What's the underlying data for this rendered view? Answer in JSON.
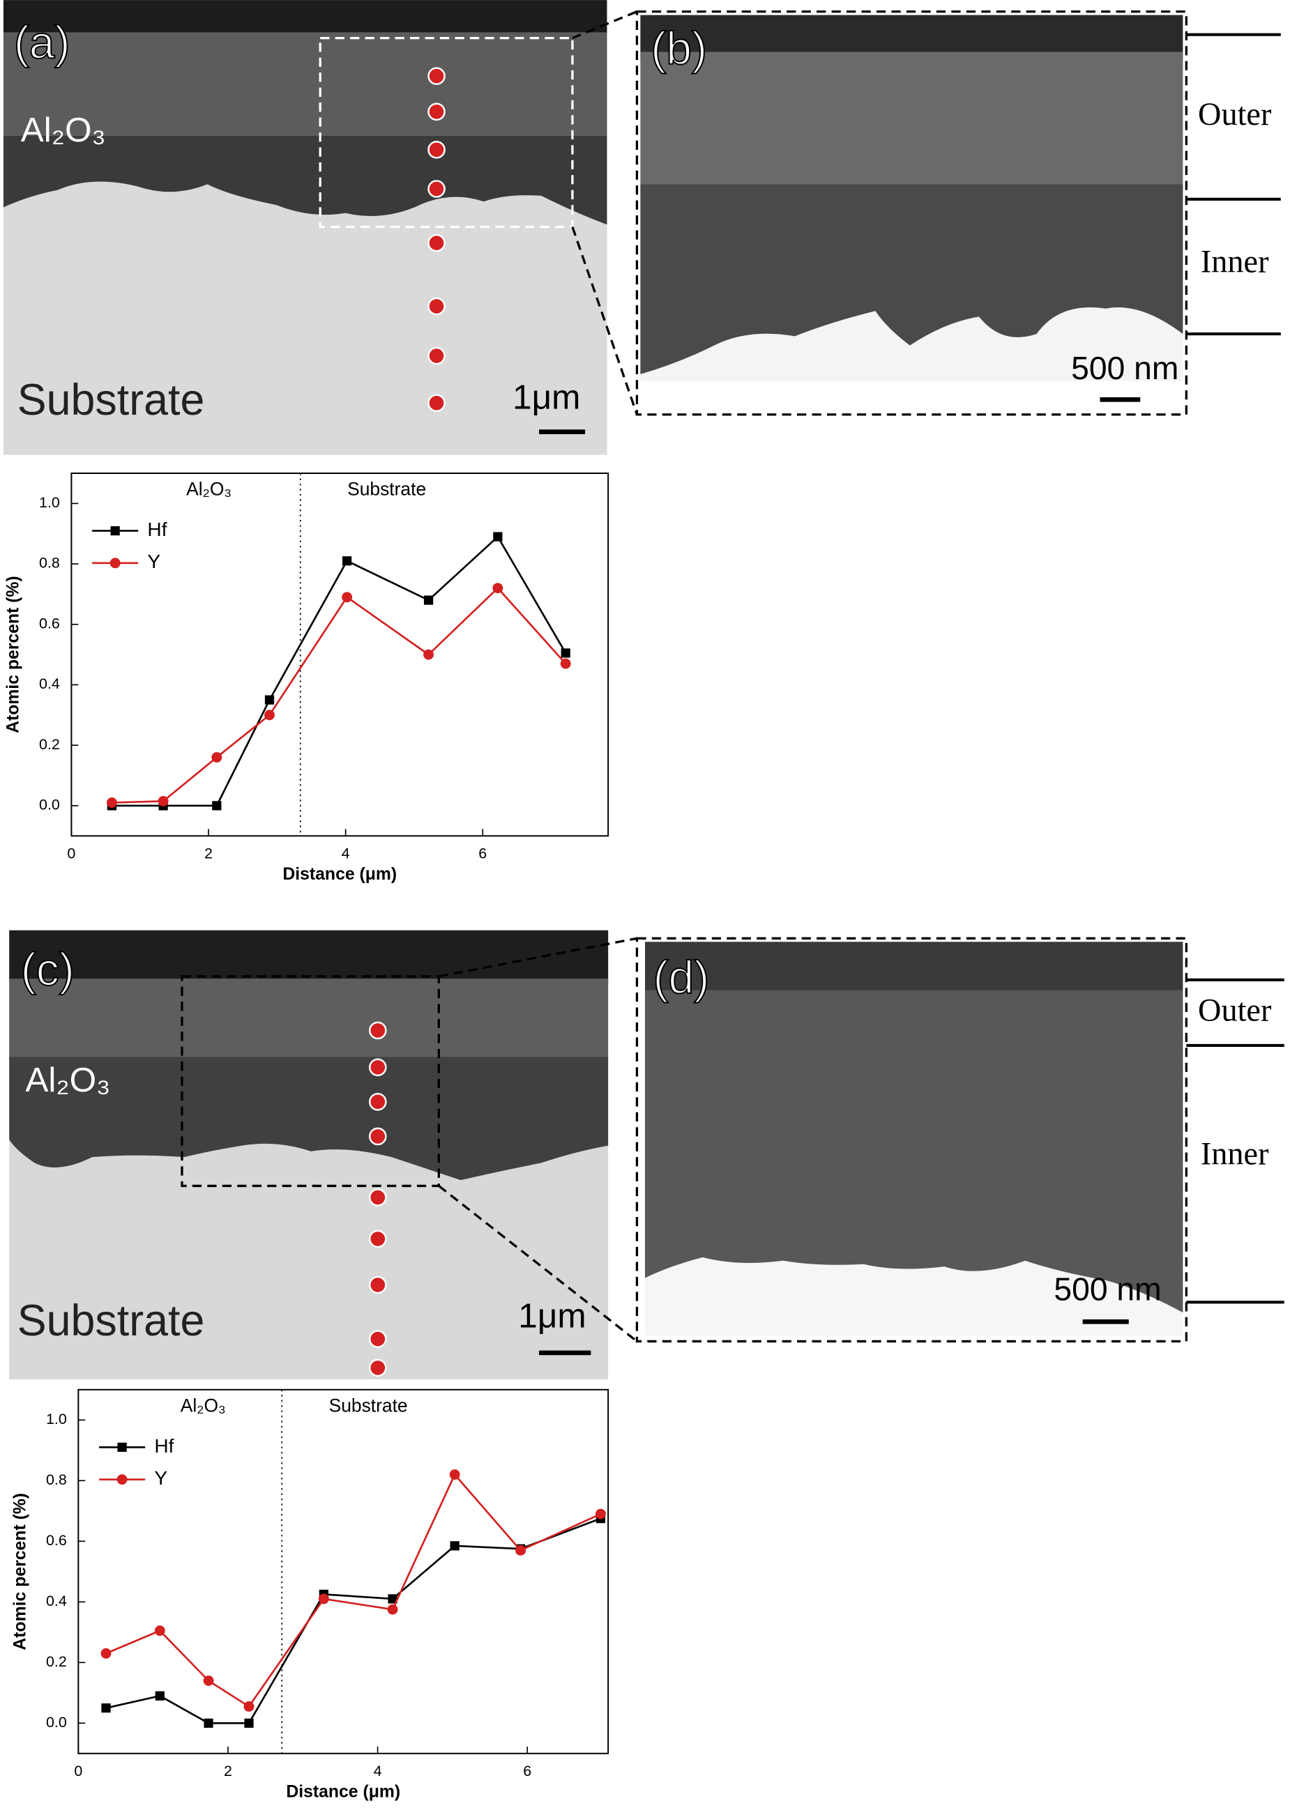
{
  "panels": [
    {
      "label": "(a)",
      "layer": "Al₂O₃",
      "base": "Substrate",
      "scale": "1μm"
    },
    {
      "label": "(b)",
      "scale": "500 nm",
      "zones": [
        "Outer",
        "Inner"
      ]
    },
    {
      "label": "(c)",
      "layer": "Al₂O₃",
      "base": "Substrate",
      "scale": "1μm"
    },
    {
      "label": "(d)",
      "scale": "500 nm",
      "zones": [
        "Outer",
        "Inner"
      ]
    }
  ],
  "chart_data": [
    {
      "type": "line",
      "x_label": "Distance (μm)",
      "y_label": "Atomic percent (%)",
      "regions": [
        "Al₂O₃",
        "Substrate"
      ],
      "divider": 3.34,
      "xlim": [
        0,
        7.83
      ],
      "ylim": [
        -0.1,
        1.1
      ],
      "xticks": [
        0,
        2,
        4,
        6
      ],
      "yticks": [
        {
          "value": 0,
          "label": "0.0"
        },
        {
          "value": 0.2,
          "label": "0.2"
        },
        {
          "value": 0.4,
          "label": "0.4"
        },
        {
          "value": 0.6,
          "label": "0.6"
        },
        {
          "value": 0.8,
          "label": "0.8"
        },
        {
          "value": 1,
          "label": "1.0"
        }
      ],
      "legend": "upper left",
      "series": [
        {
          "name": "Hf",
          "color": "#000000",
          "marker": "square",
          "x": [
            0.59,
            1.34,
            2.12,
            2.89,
            4.02,
            5.21,
            6.22,
            7.21
          ],
          "values": [
            0,
            0,
            0,
            0.35,
            0.81,
            0.68,
            0.89,
            0.505
          ]
        },
        {
          "name": "Y",
          "color": "#d42020",
          "marker": "circle",
          "x": [
            0.59,
            1.34,
            2.12,
            2.89,
            4.02,
            5.21,
            6.22,
            7.21
          ],
          "values": [
            0.01,
            0.015,
            0.16,
            0.3,
            0.69,
            0.5,
            0.72,
            0.47
          ]
        }
      ]
    },
    {
      "type": "line",
      "x_label": "Distance (μm)",
      "y_label": "Atomic percent (%)",
      "regions": [
        "Al₂O₃",
        "Substrate"
      ],
      "divider": 2.72,
      "xlim": [
        0,
        7.08
      ],
      "ylim": [
        -0.1,
        1.1
      ],
      "xticks": [
        0,
        2,
        4,
        6
      ],
      "yticks": [
        {
          "value": 0,
          "label": "0.0"
        },
        {
          "value": 0.2,
          "label": "0.2"
        },
        {
          "value": 0.4,
          "label": "0.4"
        },
        {
          "value": 0.6,
          "label": "0.6"
        },
        {
          "value": 0.8,
          "label": "0.8"
        },
        {
          "value": 1,
          "label": "1.0"
        }
      ],
      "legend": "upper left",
      "series": [
        {
          "name": "Hf",
          "color": "#000000",
          "marker": "square",
          "x": [
            0.37,
            1.09,
            1.74,
            2.28,
            3.28,
            4.2,
            5.03,
            5.91,
            6.98
          ],
          "values": [
            0.05,
            0.09,
            0,
            0,
            0.425,
            0.41,
            0.585,
            0.575,
            0.675
          ]
        },
        {
          "name": "Y",
          "color": "#d42020",
          "marker": "circle",
          "x": [
            0.37,
            1.09,
            1.74,
            2.28,
            3.28,
            4.2,
            5.03,
            5.91,
            6.98
          ],
          "values": [
            0.23,
            0.305,
            0.14,
            0.055,
            0.41,
            0.375,
            0.82,
            0.57,
            0.69
          ]
        }
      ]
    }
  ]
}
